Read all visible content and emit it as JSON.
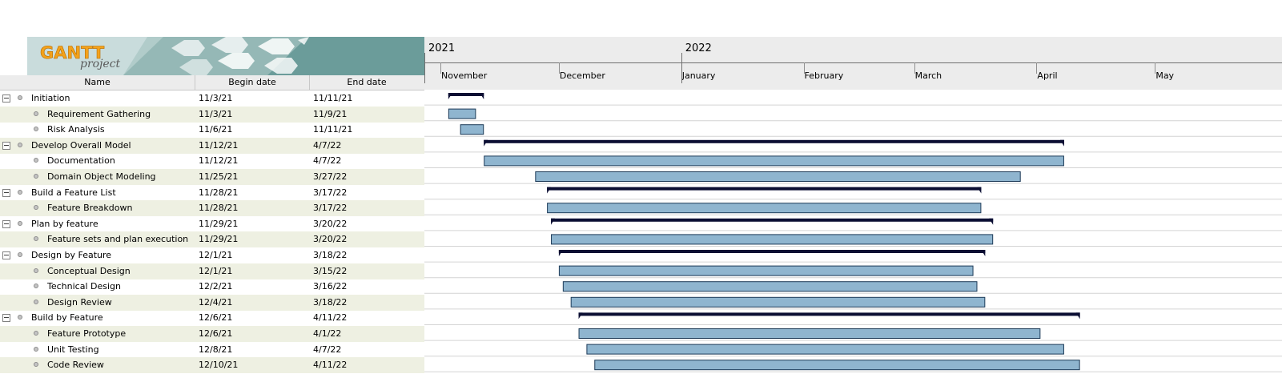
{
  "app": {
    "logo_text": "GANTT",
    "logo_subtext": "project"
  },
  "columns": {
    "name": "Name",
    "begin": "Begin date",
    "end": "End date"
  },
  "timeline": {
    "years": [
      "2021",
      "2022"
    ],
    "months": [
      "November",
      "December",
      "January",
      "February",
      "March",
      "April",
      "May"
    ]
  },
  "tasks": [
    {
      "name": "Initiation",
      "begin": "11/3/21",
      "end": "11/11/21",
      "summary": true,
      "level": 0
    },
    {
      "name": "Requirement Gathering",
      "begin": "11/3/21",
      "end": "11/9/21",
      "summary": false,
      "level": 1
    },
    {
      "name": "Risk Analysis",
      "begin": "11/6/21",
      "end": "11/11/21",
      "summary": false,
      "level": 1
    },
    {
      "name": "Develop Overall Model",
      "begin": "11/12/21",
      "end": "4/7/22",
      "summary": true,
      "level": 0
    },
    {
      "name": "Documentation",
      "begin": "11/12/21",
      "end": "4/7/22",
      "summary": false,
      "level": 1
    },
    {
      "name": "Domain Object Modeling",
      "begin": "11/25/21",
      "end": "3/27/22",
      "summary": false,
      "level": 1
    },
    {
      "name": "Build a Feature List",
      "begin": "11/28/21",
      "end": "3/17/22",
      "summary": true,
      "level": 0
    },
    {
      "name": "Feature Breakdown",
      "begin": "11/28/21",
      "end": "3/17/22",
      "summary": false,
      "level": 1
    },
    {
      "name": "Plan by feature",
      "begin": "11/29/21",
      "end": "3/20/22",
      "summary": true,
      "level": 0
    },
    {
      "name": "Feature sets and plan execution",
      "begin": "11/29/21",
      "end": "3/20/22",
      "summary": false,
      "level": 1
    },
    {
      "name": "Design by Feature",
      "begin": "12/1/21",
      "end": "3/18/22",
      "summary": true,
      "level": 0
    },
    {
      "name": "Conceptual Design",
      "begin": "12/1/21",
      "end": "3/15/22",
      "summary": false,
      "level": 1
    },
    {
      "name": "Technical Design",
      "begin": "12/2/21",
      "end": "3/16/22",
      "summary": false,
      "level": 1
    },
    {
      "name": "Design Review",
      "begin": "12/4/21",
      "end": "3/18/22",
      "summary": false,
      "level": 1
    },
    {
      "name": "Build by Feature",
      "begin": "12/6/21",
      "end": "4/11/22",
      "summary": true,
      "level": 0
    },
    {
      "name": "Feature Prototype",
      "begin": "12/6/21",
      "end": "4/1/22",
      "summary": false,
      "level": 1
    },
    {
      "name": "Unit Testing",
      "begin": "12/8/21",
      "end": "4/7/22",
      "summary": false,
      "level": 1
    },
    {
      "name": "Code Review",
      "begin": "12/10/21",
      "end": "4/11/22",
      "summary": false,
      "level": 1
    }
  ],
  "colors": {
    "task_bar": "#8fb5cf",
    "task_bar_border": "#1c3a57",
    "summary_bar": "#0b0e33",
    "alt_row": "#eef0e2",
    "logo_bg": "#6b9c9a",
    "logo_orange": "#f3a21b"
  }
}
